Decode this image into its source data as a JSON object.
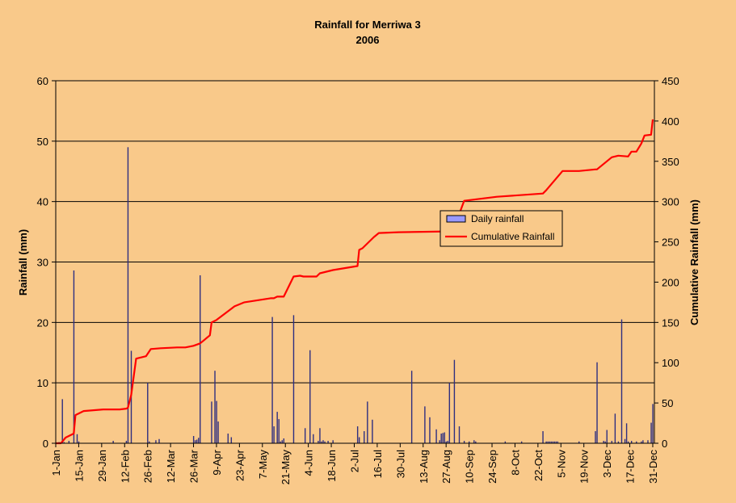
{
  "chart_data": {
    "type": "bar+line",
    "title": "Rainfall for Merriwa 3",
    "subtitle": "2006",
    "ylabel": "Rainfall (mm)",
    "y2label": "Cumulative Rainfall (mm)",
    "ylim": [
      0,
      60
    ],
    "y2lim": [
      0,
      450
    ],
    "yticks": [
      "0",
      "10",
      "20",
      "30",
      "40",
      "50",
      "60"
    ],
    "y2ticks": [
      "0",
      "50",
      "100",
      "150",
      "200",
      "250",
      "300",
      "350",
      "400",
      "450"
    ],
    "xticks": [
      "1-Jan",
      "15-Jan",
      "29-Jan",
      "12-Feb",
      "26-Feb",
      "12-Mar",
      "26-Mar",
      "9-Apr",
      "23-Apr",
      "7-May",
      "21-May",
      "4-Jun",
      "18-Jun",
      "2-Jul",
      "16-Jul",
      "30-Jul",
      "13-Aug",
      "27-Aug",
      "10-Sep",
      "24-Sep",
      "8-Oct",
      "22-Oct",
      "5-Nov",
      "19-Nov",
      "3-Dec",
      "17-Dec",
      "31-Dec"
    ],
    "grid": true,
    "legend_position": "right-center",
    "colors": {
      "bars": "#2f2f80",
      "line": "#ff0000",
      "grid": "#000000",
      "legend_swatch": "#9999ff"
    },
    "series": [
      {
        "name": "Daily rainfall",
        "type": "bar",
        "axis": "left",
        "x_day": [
          3,
          5,
          6,
          9,
          12,
          14,
          15,
          36,
          44,
          45,
          47,
          57,
          58,
          62,
          64,
          85,
          86,
          87,
          88,
          89,
          96,
          98,
          99,
          100,
          106,
          108,
          133,
          134,
          136,
          137,
          138,
          139,
          140,
          146,
          153,
          156,
          158,
          161,
          162,
          163,
          164,
          165,
          167,
          170,
          185,
          186,
          189,
          191,
          194,
          218,
          226,
          229,
          233,
          235,
          236,
          237,
          238,
          239,
          240,
          241,
          244,
          247,
          250,
          253,
          256,
          257,
          275,
          285,
          298,
          300,
          301,
          302,
          303,
          304,
          305,
          306,
          307,
          320,
          330,
          331,
          335,
          336,
          337,
          340,
          342,
          344,
          346,
          348,
          349,
          350,
          352,
          355,
          358,
          359,
          362,
          364,
          365
        ],
        "values": [
          0.2,
          7.3,
          0.2,
          0.4,
          28.6,
          1.5,
          0.3,
          0.4,
          0.4,
          49.0,
          15.3,
          10.0,
          0.3,
          0.5,
          0.7,
          1.2,
          0.5,
          0.6,
          0.9,
          27.8,
          6.9,
          12.0,
          7.0,
          3.6,
          1.6,
          1.0,
          20.9,
          2.8,
          5.2,
          4.0,
          0.3,
          0.5,
          0.8,
          21.2,
          2.5,
          15.4,
          1.5,
          0.4,
          2.5,
          0.3,
          0.5,
          0.3,
          0.4,
          0.5,
          2.8,
          1.0,
          2.0,
          6.9,
          3.9,
          12.0,
          6.1,
          4.3,
          2.3,
          0.5,
          1.6,
          1.7,
          1.8,
          0.3,
          0.4,
          10.0,
          13.8,
          2.8,
          0.4,
          0.3,
          0.5,
          0.3,
          0.3,
          0.3,
          2.0,
          0.3,
          0.3,
          0.3,
          0.3,
          0.3,
          0.3,
          0.3,
          0.3,
          0.3,
          2.0,
          13.4,
          0.4,
          0.3,
          2.2,
          0.4,
          4.9,
          0.3,
          20.5,
          0.7,
          3.3,
          0.3,
          0.4,
          0.3,
          0.3,
          0.5,
          0.5,
          3.4,
          6.5
        ]
      },
      {
        "name": "Cumulative Rainfall",
        "type": "line",
        "axis": "right",
        "x_day": [
          1,
          4,
          5,
          7,
          8,
          12,
          13,
          18,
          30,
          40,
          44,
          45,
          47,
          50,
          56,
          59,
          65,
          75,
          80,
          85,
          89,
          95,
          96,
          99,
          110,
          116,
          132,
          134,
          136,
          140,
          146,
          150,
          152,
          160,
          162,
          170,
          185,
          186,
          188,
          195,
          198,
          210,
          240,
          244,
          250,
          270,
          298,
          300,
          310,
          320,
          330,
          331,
          340,
          344,
          350,
          352,
          355,
          358,
          360,
          364,
          365
        ],
        "values": [
          0,
          0,
          2,
          7,
          8,
          12,
          35,
          40,
          42,
          42,
          43,
          44,
          60,
          105,
          108,
          117,
          118,
          119,
          119,
          121,
          124,
          134,
          150,
          153,
          170,
          175,
          180,
          180,
          182,
          182,
          207,
          208,
          207,
          207,
          211,
          215,
          220,
          240,
          242,
          256,
          261,
          262,
          263,
          268,
          301,
          306,
          310,
          314,
          338,
          338,
          340,
          340,
          355,
          357,
          356,
          362,
          362,
          372,
          382,
          383,
          402
        ]
      }
    ]
  }
}
